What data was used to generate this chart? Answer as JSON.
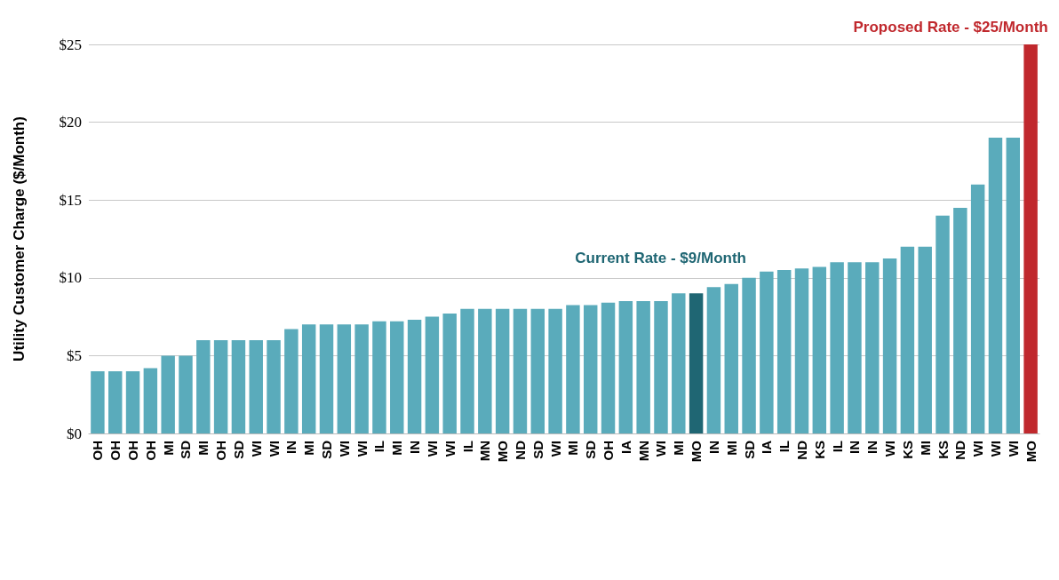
{
  "chart_data": {
    "type": "bar",
    "ylabel": "Utility Customer Charge ($/Month)",
    "categories": [
      "OH",
      "OH",
      "OH",
      "OH",
      "MI",
      "SD",
      "MI",
      "OH",
      "SD",
      "WI",
      "WI",
      "IN",
      "MI",
      "SD",
      "WI",
      "WI",
      "IL",
      "MI",
      "IN",
      "WI",
      "WI",
      "IL",
      "MN",
      "MO",
      "ND",
      "SD",
      "WI",
      "MI",
      "SD",
      "OH",
      "IA",
      "MN",
      "WI",
      "MI",
      "MO",
      "IN",
      "MI",
      "SD",
      "IA",
      "IL",
      "ND",
      "KS",
      "IL",
      "IN",
      "IN",
      "WI",
      "KS",
      "MI",
      "KS",
      "ND",
      "WI",
      "WI",
      "WI",
      "MO"
    ],
    "values": [
      4,
      4,
      4,
      4.2,
      5,
      5,
      6,
      6,
      6,
      6,
      6,
      6.7,
      7,
      7,
      7,
      7,
      7.2,
      7.2,
      7.3,
      7.5,
      7.7,
      8,
      8,
      8,
      8,
      8,
      8,
      8.25,
      8.25,
      8.4,
      8.5,
      8.5,
      8.5,
      9,
      9,
      9.4,
      9.6,
      10,
      10.4,
      10.5,
      10.6,
      10.7,
      11,
      11,
      11,
      11.25,
      12,
      12,
      14,
      14.5,
      16,
      19,
      19,
      25
    ],
    "colors": [
      "#5aabbb",
      "#5aabbb",
      "#5aabbb",
      "#5aabbb",
      "#5aabbb",
      "#5aabbb",
      "#5aabbb",
      "#5aabbb",
      "#5aabbb",
      "#5aabbb",
      "#5aabbb",
      "#5aabbb",
      "#5aabbb",
      "#5aabbb",
      "#5aabbb",
      "#5aabbb",
      "#5aabbb",
      "#5aabbb",
      "#5aabbb",
      "#5aabbb",
      "#5aabbb",
      "#5aabbb",
      "#5aabbb",
      "#5aabbb",
      "#5aabbb",
      "#5aabbb",
      "#5aabbb",
      "#5aabbb",
      "#5aabbb",
      "#5aabbb",
      "#5aabbb",
      "#5aabbb",
      "#5aabbb",
      "#5aabbb",
      "#1f6673",
      "#5aabbb",
      "#5aabbb",
      "#5aabbb",
      "#5aabbb",
      "#5aabbb",
      "#5aabbb",
      "#5aabbb",
      "#5aabbb",
      "#5aabbb",
      "#5aabbb",
      "#5aabbb",
      "#5aabbb",
      "#5aabbb",
      "#5aabbb",
      "#5aabbb",
      "#5aabbb",
      "#5aabbb",
      "#5aabbb",
      "#c0282d"
    ],
    "ylim": [
      0,
      25
    ],
    "yticks": [
      {
        "value": 0,
        "label": "$0"
      },
      {
        "value": 5,
        "label": "$5"
      },
      {
        "value": 10,
        "label": "$10"
      },
      {
        "value": 15,
        "label": "$15"
      },
      {
        "value": 20,
        "label": "$20"
      },
      {
        "value": 25,
        "label": "$25"
      }
    ],
    "grid": "y",
    "annotations": [
      "Current Rate - $9/Month",
      "Proposed Rate - $25/Month"
    ]
  }
}
